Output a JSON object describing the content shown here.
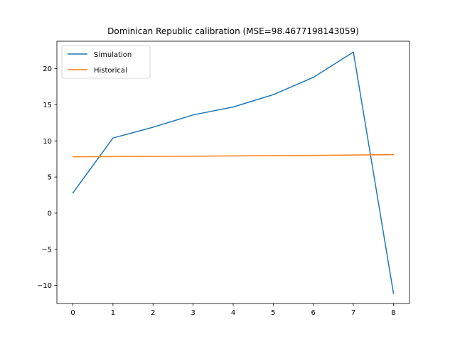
{
  "chart_data": {
    "type": "line",
    "title": "Dominican Republic calibration (MSE=98.4677198143059)",
    "xlabel": "",
    "ylabel": "",
    "x": [
      0,
      1,
      2,
      3,
      4,
      5,
      6,
      7,
      8
    ],
    "xlim": [
      -0.4,
      8.4
    ],
    "ylim": [
      -12.5,
      23.8
    ],
    "xticks": [
      0,
      1,
      2,
      3,
      4,
      5,
      6,
      7,
      8
    ],
    "yticks": [
      -10,
      -5,
      0,
      5,
      10,
      15,
      20
    ],
    "ytick_labels": [
      "−10",
      "−5",
      "0",
      "5",
      "10",
      "15",
      "20"
    ],
    "grid": false,
    "legend_position": "upper-left",
    "series": [
      {
        "name": "Simulation",
        "color": "#1f77b4",
        "values": [
          2.8,
          10.4,
          11.9,
          13.6,
          14.7,
          16.4,
          18.8,
          22.3,
          -11.1
        ]
      },
      {
        "name": "Historical",
        "color": "#ff7f0e",
        "values": [
          7.8,
          7.83,
          7.86,
          7.89,
          7.92,
          7.96,
          8.0,
          8.05,
          8.1
        ]
      }
    ]
  }
}
